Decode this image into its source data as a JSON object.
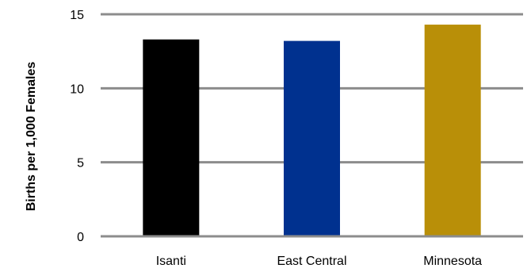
{
  "chart_data": {
    "type": "bar",
    "title": "",
    "xlabel": "",
    "ylabel": "Births per 1,000 Females",
    "categories": [
      "Isanti",
      "East Central",
      "Minnesota"
    ],
    "values": [
      13.3,
      13.2,
      14.3
    ],
    "bar_colors": [
      "#000000",
      "#00318f",
      "#b98f08"
    ],
    "ylim": [
      0,
      15
    ],
    "yticks": [
      0,
      5,
      10,
      15
    ],
    "ytick_labels": [
      "0",
      "5",
      "10",
      "15"
    ],
    "grid": true,
    "gridline_color": "#8c8c8c",
    "legend": "none"
  }
}
